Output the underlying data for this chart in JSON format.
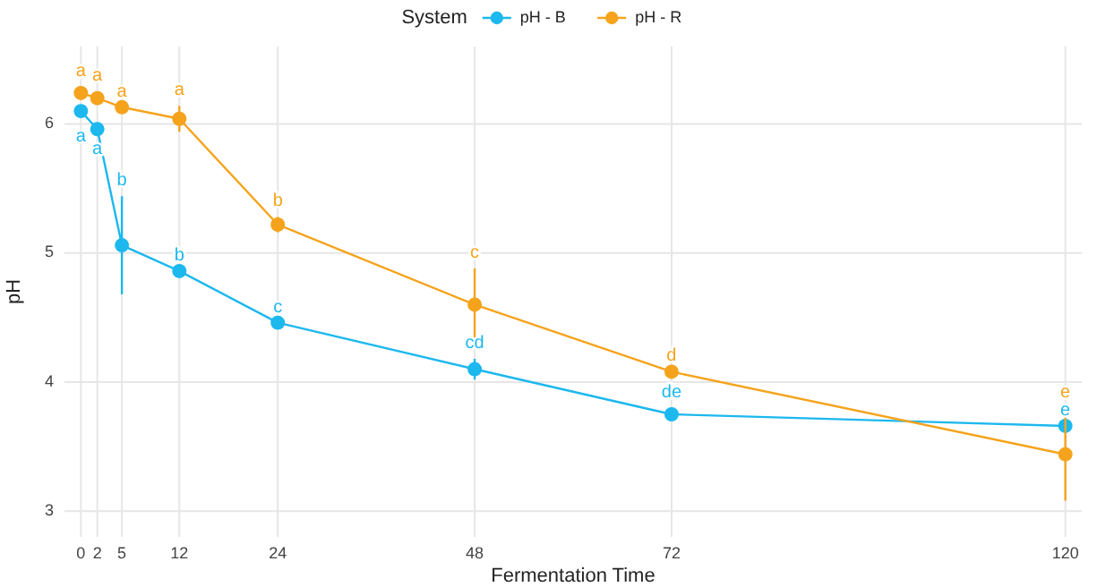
{
  "chart_data": {
    "type": "line",
    "xlabel": "Fermentation Time",
    "ylabel": "pH",
    "legend_title": "System",
    "legend": "top",
    "marker": "circle",
    "grid": true,
    "x": [
      0,
      2,
      5,
      12,
      24,
      48,
      72,
      120
    ],
    "xlim": [
      -2,
      122
    ],
    "xticks": [
      0,
      2,
      5,
      12,
      24,
      48,
      72,
      120
    ],
    "ylim": [
      2.8,
      6.6
    ],
    "yticks": [
      3,
      4,
      5,
      6
    ],
    "series": [
      {
        "name": "pH - B",
        "color": "#1cb8ee",
        "values": [
          6.1,
          5.96,
          5.06,
          4.86,
          4.46,
          4.1,
          3.75,
          3.66
        ],
        "errors": [
          0.04,
          null,
          0.38,
          null,
          null,
          0.08,
          0.05,
          null
        ],
        "value_labels": [
          "a",
          "a",
          "b",
          "b",
          "c",
          "cd",
          "de",
          "e"
        ]
      },
      {
        "name": "pH - R",
        "color": "#f5a31c",
        "values": [
          6.24,
          6.2,
          6.13,
          6.04,
          5.22,
          4.6,
          4.08,
          3.44
        ],
        "errors": [
          0.05,
          0.05,
          null,
          0.1,
          0.06,
          0.28,
          null,
          0.36
        ],
        "value_labels": [
          "a",
          "a",
          "a",
          "a",
          "b",
          "c",
          "d",
          "e"
        ]
      }
    ]
  }
}
